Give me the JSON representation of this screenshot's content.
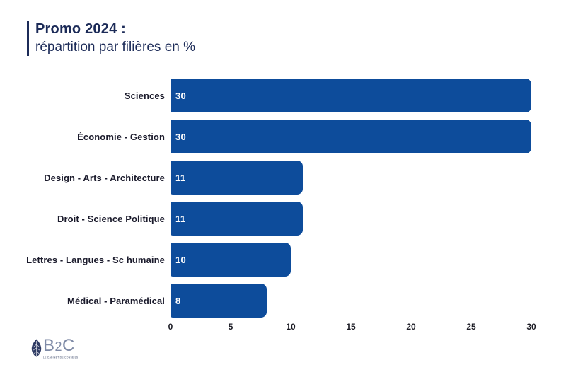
{
  "title": {
    "main": "Promo 2024 :",
    "sub": "répartition par filières en %"
  },
  "chart_data": {
    "type": "bar",
    "orientation": "horizontal",
    "title": "Promo 2024 :",
    "subtitle": "répartition par filières en %",
    "categories": [
      "Sciences",
      "Économie - Gestion",
      "Design - Arts - Architecture",
      "Droit - Science Politique",
      "Lettres - Langues - Sc humaine",
      "Médical - Paramédical"
    ],
    "values": [
      30,
      30,
      11,
      11,
      10,
      8
    ],
    "value_labels": [
      "30",
      "30",
      "11",
      "11",
      "10",
      "8"
    ],
    "xlim": [
      0,
      30
    ],
    "xticks": [
      0,
      5,
      10,
      15,
      20,
      25,
      30
    ],
    "grid": false,
    "legend": false,
    "bar_color": "#0d4c9b",
    "value_label_color": "#ffffff"
  },
  "logo": {
    "part_b": "B",
    "part_2": "2",
    "part_c": "C",
    "tagline": "LE CABINET DE CONSEILS",
    "leaf_color": "#2e3a63"
  },
  "colors": {
    "title_navy": "#1c2b58",
    "bar_blue": "#0d4c9b",
    "label_dark": "#1b1b2c",
    "background": "#ffffff"
  }
}
